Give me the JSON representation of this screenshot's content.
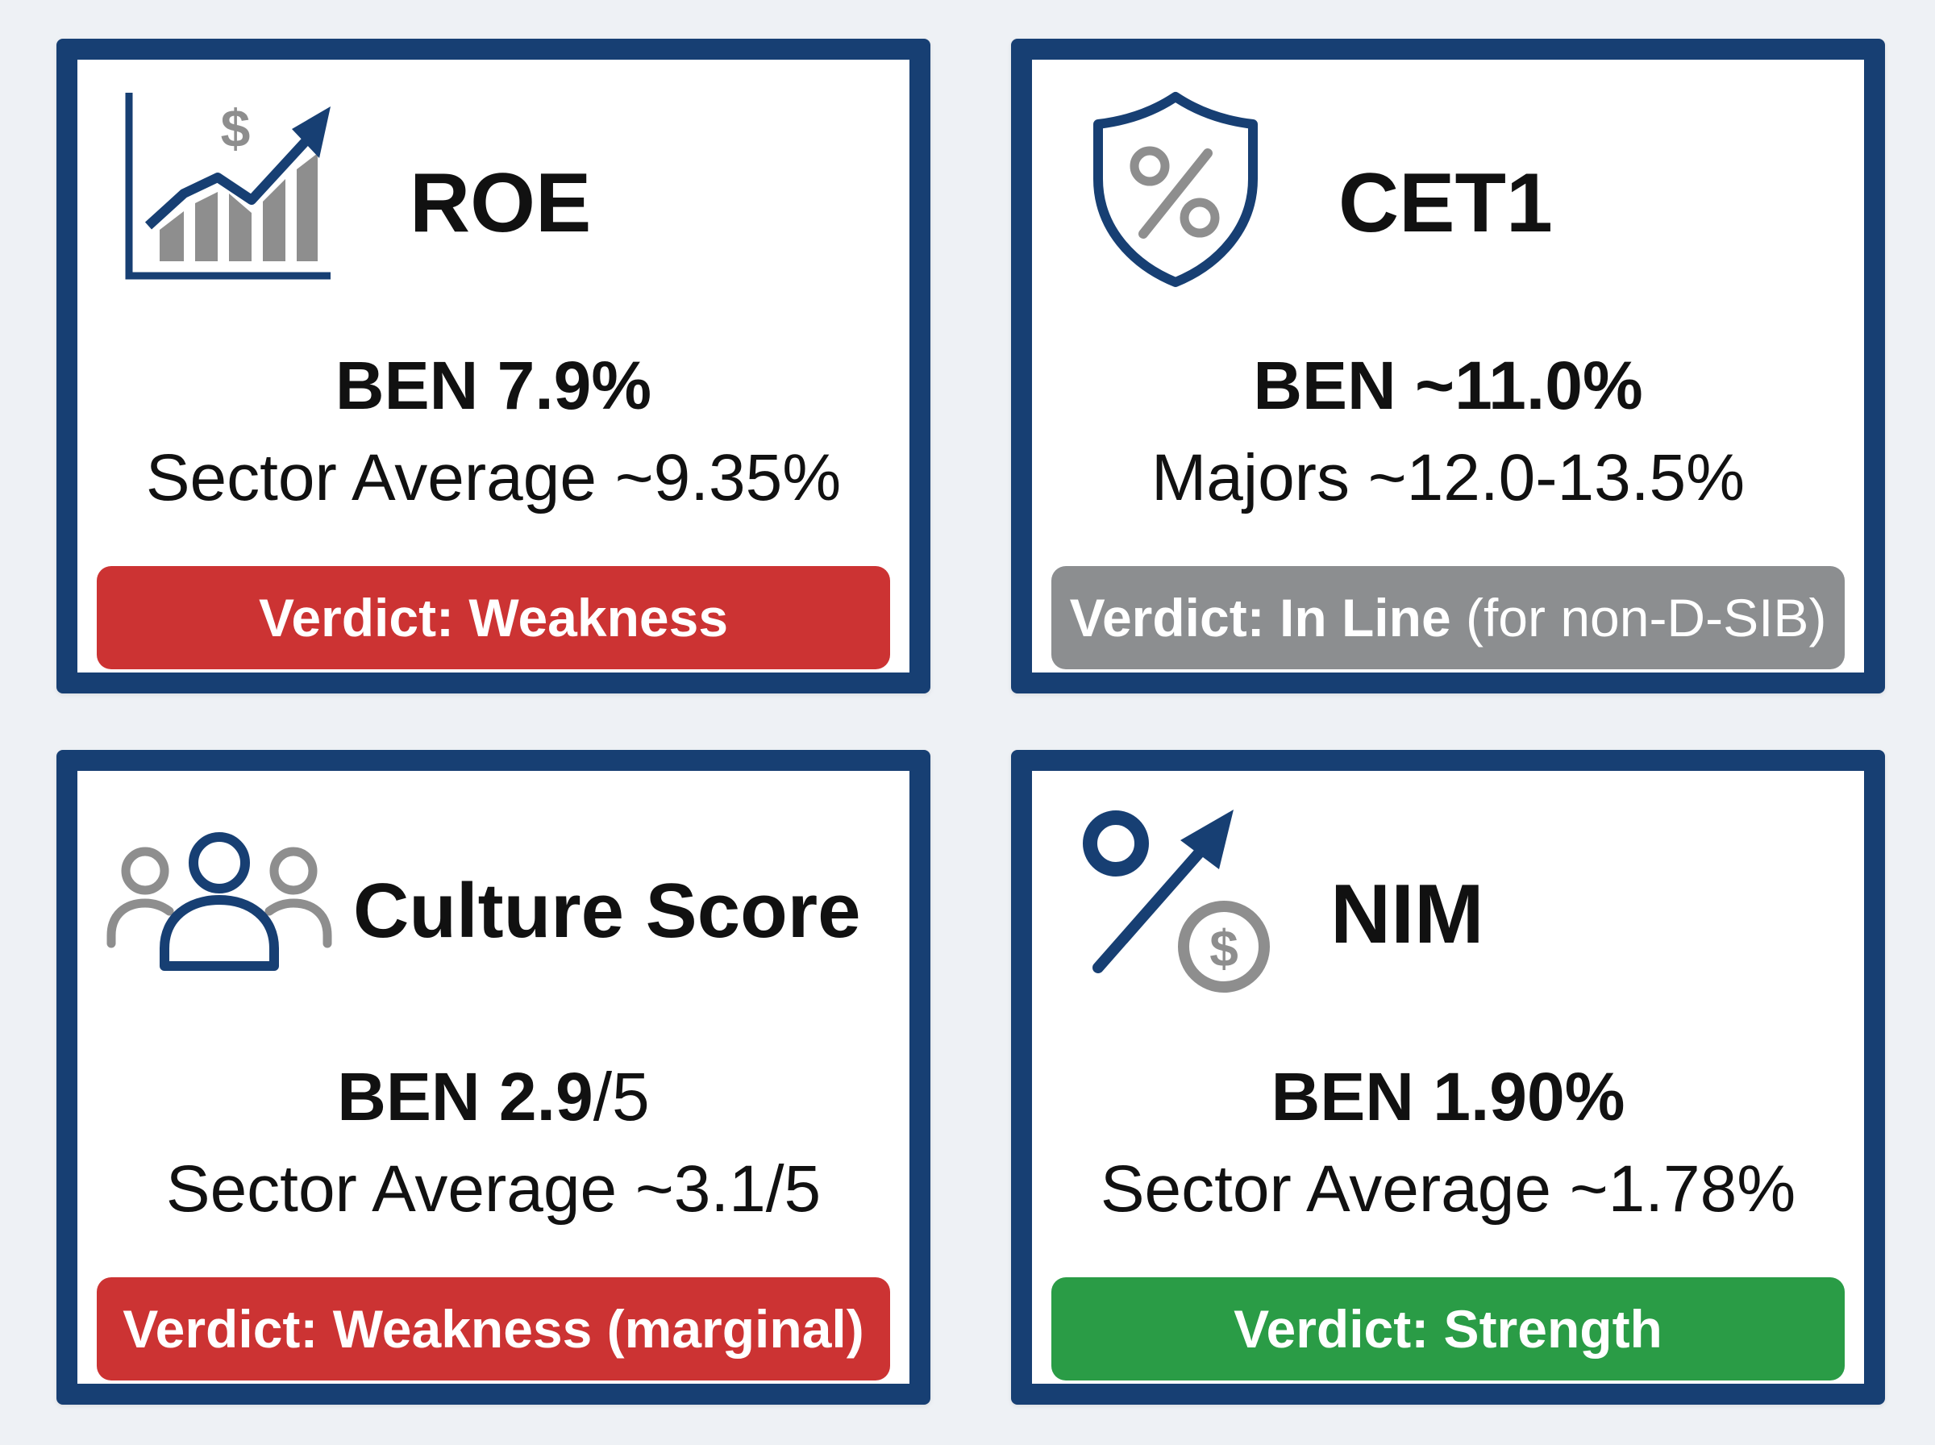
{
  "colors": {
    "border": "#173f73",
    "icon_blue": "#173f73",
    "icon_grey": "#8e8e8e",
    "weakness": "#cc3333",
    "in_line": "#8c8e90",
    "strength": "#2a9c46"
  },
  "cards": [
    {
      "title": "ROE",
      "icon": "growth-chart-dollar-icon",
      "ben": "BEN 7.9%",
      "ben_suffix": "",
      "comparison": "Sector Average ~9.35%",
      "verdict_label": "Verdict: Weakness",
      "verdict_note": "",
      "verdict_status": "weakness"
    },
    {
      "title": "CET1",
      "icon": "shield-percent-icon",
      "ben": "BEN ~11.0%",
      "ben_suffix": "",
      "comparison": "Majors ~12.0-13.5%",
      "verdict_label": "Verdict: In Line",
      "verdict_note": " (for non-D-SIB)",
      "verdict_status": "in-line"
    },
    {
      "title": "Culture Score",
      "icon": "people-group-icon",
      "ben": "BEN 2.9",
      "ben_suffix": "/5",
      "comparison": "Sector Average ~3.1/5",
      "verdict_label": "Verdict: Weakness (marginal)",
      "verdict_note": "",
      "verdict_status": "weakness"
    },
    {
      "title": "NIM",
      "icon": "percent-arrow-dollar-icon",
      "ben": "BEN 1.90%",
      "ben_suffix": "",
      "comparison": "Sector Average ~1.78%",
      "verdict_label": "Verdict: Strength",
      "verdict_note": "",
      "verdict_status": "strength"
    }
  ]
}
